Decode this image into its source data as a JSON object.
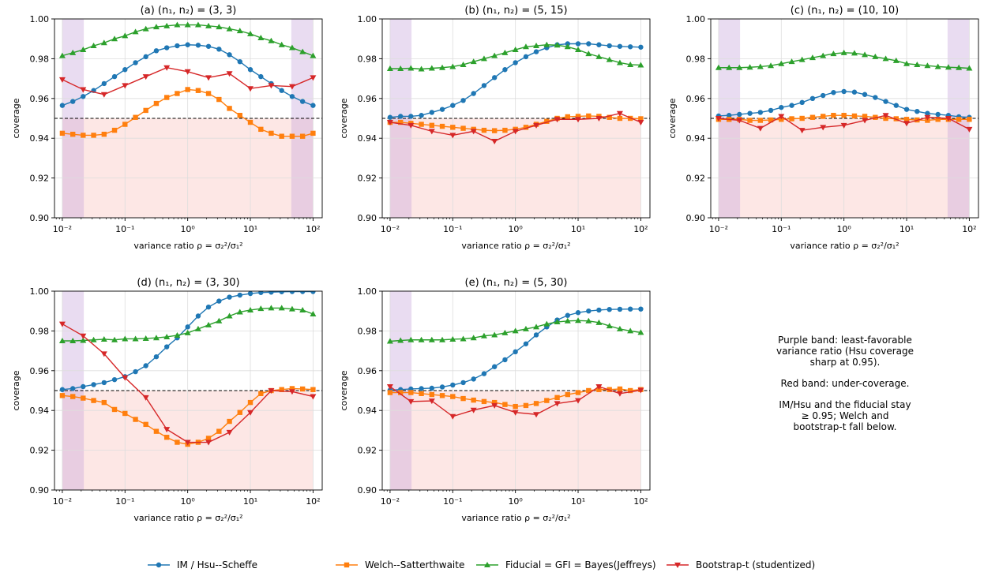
{
  "figure": {
    "ylabel": "coverage",
    "xlabel": "variance ratio ρ = σ₂²/σ₁²",
    "note": [
      "Purple band: least-favorable\nvariance ratio (Hsu coverage\nsharp at 0.95).",
      "Red band: under-coverage.",
      "IM/Hsu and the fiducial stay\n≥ 0.95; Welch and\nbootstrap-t fall below."
    ],
    "legend": [
      {
        "label": "IM / Hsu--Scheffe",
        "color": "#1f77b4",
        "marker": "circle"
      },
      {
        "label": "Welch--Satterthwaite",
        "color": "#ff7f0e",
        "marker": "square"
      },
      {
        "label": "Fiducial = GFI = Bayes(Jeffreys)",
        "color": "#2ca02c",
        "marker": "triangle-up"
      },
      {
        "label": "Bootstrap-t (studentized)",
        "color": "#d62728",
        "marker": "triangle-down"
      }
    ],
    "colors": {
      "purple_band": "#c8a8dc",
      "red_band": "#fde3e0",
      "reference_line": "#000000"
    }
  },
  "chart_data": [
    {
      "type": "line",
      "title": "(a) (n₁, n₂) = (3, 3)",
      "xscale": "log",
      "xlim": [
        0.0075,
        140
      ],
      "ylim": [
        0.9,
        1.0
      ],
      "xticks": [
        "10⁻²",
        "10⁻¹",
        "10⁰",
        "10¹",
        "10²"
      ],
      "yticks": [
        "0.90",
        "0.92",
        "0.94",
        "0.96",
        "0.98",
        "1.00"
      ],
      "reference_line": 0.95,
      "purple_bands": [
        [
          0.01,
          0.022
        ],
        [
          45,
          100
        ]
      ],
      "x": [
        0.01,
        0.0147,
        0.0215,
        0.0316,
        0.0464,
        0.0681,
        0.1,
        0.147,
        0.215,
        0.316,
        0.464,
        0.681,
        1,
        1.47,
        2.15,
        3.16,
        4.64,
        6.81,
        10,
        14.7,
        21.5,
        31.6,
        46.4,
        68.1,
        100
      ],
      "series": [
        {
          "name": "IM / Hsu--Scheffe",
          "values": [
            0.9565,
            0.9585,
            0.961,
            0.964,
            0.9675,
            0.971,
            0.9745,
            0.978,
            0.981,
            0.984,
            0.9855,
            0.9865,
            0.987,
            0.9868,
            0.9862,
            0.9848,
            0.982,
            0.9785,
            0.9745,
            0.971,
            0.9675,
            0.964,
            0.961,
            0.9585,
            0.9565
          ]
        },
        {
          "name": "Welch--Satterthwaite",
          "values": [
            0.9425,
            0.942,
            0.9415,
            0.9415,
            0.942,
            0.944,
            0.947,
            0.9505,
            0.954,
            0.9575,
            0.9605,
            0.9625,
            0.9645,
            0.964,
            0.9625,
            0.9595,
            0.955,
            0.9515,
            0.948,
            0.9445,
            0.9425,
            0.941,
            0.941,
            0.941,
            0.9425
          ]
        },
        {
          "name": "Fiducial = GFI = Bayes(Jeffreys)",
          "values": [
            0.9815,
            0.983,
            0.9845,
            0.9865,
            0.988,
            0.99,
            0.9915,
            0.9935,
            0.995,
            0.996,
            0.9965,
            0.997,
            0.997,
            0.997,
            0.9965,
            0.996,
            0.995,
            0.994,
            0.9925,
            0.9905,
            0.989,
            0.987,
            0.9855,
            0.9835,
            0.9815
          ]
        },
        {
          "name": "Bootstrap-t (studentized)",
          "x": [
            0.01,
            0.0215,
            0.0464,
            0.1,
            0.215,
            0.464,
            1,
            2.15,
            4.64,
            10,
            21.5,
            46.4,
            100
          ],
          "values": [
            0.9695,
            0.9645,
            0.962,
            0.9665,
            0.971,
            0.9755,
            0.9735,
            0.9705,
            0.9725,
            0.965,
            0.9665,
            0.966,
            0.9705
          ]
        }
      ]
    },
    {
      "type": "line",
      "title": "(b) (n₁, n₂) = (5, 15)",
      "xscale": "log",
      "xlim": [
        0.0075,
        140
      ],
      "ylim": [
        0.9,
        1.0
      ],
      "xticks": [
        "10⁻²",
        "10⁻¹",
        "10⁰",
        "10¹",
        "10²"
      ],
      "yticks": [
        "0.90",
        "0.92",
        "0.94",
        "0.96",
        "0.98",
        "1.00"
      ],
      "reference_line": 0.95,
      "purple_bands": [
        [
          0.01,
          0.022
        ]
      ],
      "x": [
        0.01,
        0.0147,
        0.0215,
        0.0316,
        0.0464,
        0.0681,
        0.1,
        0.147,
        0.215,
        0.316,
        0.464,
        0.681,
        1,
        1.47,
        2.15,
        3.16,
        4.64,
        6.81,
        10,
        14.7,
        21.5,
        31.6,
        46.4,
        68.1,
        100
      ],
      "series": [
        {
          "name": "IM / Hsu--Scheffe",
          "values": [
            0.9505,
            0.951,
            0.951,
            0.9515,
            0.953,
            0.9545,
            0.9565,
            0.959,
            0.9625,
            0.9665,
            0.9705,
            0.9745,
            0.978,
            0.981,
            0.9835,
            0.9855,
            0.987,
            0.9875,
            0.9875,
            0.9875,
            0.987,
            0.9865,
            0.9862,
            0.986,
            0.9858
          ]
        },
        {
          "name": "Welch--Satterthwaite",
          "values": [
            0.948,
            0.948,
            0.9475,
            0.947,
            0.9465,
            0.946,
            0.9455,
            0.945,
            0.9445,
            0.944,
            0.9438,
            0.944,
            0.9445,
            0.9455,
            0.947,
            0.9485,
            0.95,
            0.9508,
            0.951,
            0.9512,
            0.951,
            0.9505,
            0.95,
            0.95,
            0.9498
          ]
        },
        {
          "name": "Fiducial = GFI = Bayes(Jeffreys)",
          "values": [
            0.975,
            0.975,
            0.9752,
            0.9748,
            0.9752,
            0.9755,
            0.976,
            0.977,
            0.9785,
            0.98,
            0.9815,
            0.983,
            0.9845,
            0.986,
            0.9865,
            0.987,
            0.9868,
            0.986,
            0.9845,
            0.9825,
            0.981,
            0.9795,
            0.978,
            0.977,
            0.9768
          ]
        },
        {
          "name": "Bootstrap-t (studentized)",
          "x": [
            0.01,
            0.0215,
            0.0464,
            0.1,
            0.215,
            0.464,
            1,
            2.15,
            4.64,
            10,
            21.5,
            46.4,
            100
          ],
          "values": [
            0.948,
            0.9465,
            0.9435,
            0.9415,
            0.9435,
            0.9385,
            0.9435,
            0.9465,
            0.9495,
            0.9495,
            0.95,
            0.9525,
            0.948
          ]
        }
      ]
    },
    {
      "type": "line",
      "title": "(c) (n₁, n₂) = (10, 10)",
      "xscale": "log",
      "xlim": [
        0.0075,
        140
      ],
      "ylim": [
        0.9,
        1.0
      ],
      "xticks": [
        "10⁻²",
        "10⁻¹",
        "10⁰",
        "10¹",
        "10²"
      ],
      "yticks": [
        "0.90",
        "0.92",
        "0.94",
        "0.96",
        "0.98",
        "1.00"
      ],
      "reference_line": 0.95,
      "purple_bands": [
        [
          0.01,
          0.022
        ],
        [
          45,
          100
        ]
      ],
      "x": [
        0.01,
        0.0147,
        0.0215,
        0.0316,
        0.0464,
        0.0681,
        0.1,
        0.147,
        0.215,
        0.316,
        0.464,
        0.681,
        1,
        1.47,
        2.15,
        3.16,
        4.64,
        6.81,
        10,
        14.7,
        21.5,
        31.6,
        46.4,
        68.1,
        100
      ],
      "series": [
        {
          "name": "IM / Hsu--Scheffe",
          "values": [
            0.9512,
            0.9515,
            0.952,
            0.9525,
            0.953,
            0.954,
            0.9555,
            0.9565,
            0.958,
            0.96,
            0.9615,
            0.963,
            0.9635,
            0.9632,
            0.962,
            0.9605,
            0.9585,
            0.9565,
            0.9545,
            0.9535,
            0.9525,
            0.952,
            0.9515,
            0.9508,
            0.9505
          ]
        },
        {
          "name": "Welch--Satterthwaite",
          "values": [
            0.9495,
            0.9495,
            0.9495,
            0.949,
            0.949,
            0.9492,
            0.9495,
            0.9498,
            0.95,
            0.9505,
            0.951,
            0.9515,
            0.9515,
            0.9512,
            0.951,
            0.9505,
            0.95,
            0.9498,
            0.9495,
            0.9492,
            0.949,
            0.9495,
            0.9495,
            0.9495,
            0.9495
          ]
        },
        {
          "name": "Fiducial = GFI = Bayes(Jeffreys)",
          "values": [
            0.9755,
            0.9755,
            0.9755,
            0.9757,
            0.976,
            0.9765,
            0.9775,
            0.9785,
            0.9795,
            0.9805,
            0.9815,
            0.9825,
            0.983,
            0.9828,
            0.982,
            0.981,
            0.98,
            0.979,
            0.9775,
            0.977,
            0.9765,
            0.976,
            0.9757,
            0.9755,
            0.9752
          ]
        },
        {
          "name": "Bootstrap-t (studentized)",
          "x": [
            0.01,
            0.0215,
            0.0464,
            0.1,
            0.215,
            0.464,
            1,
            2.15,
            4.64,
            10,
            21.5,
            46.4,
            100
          ],
          "values": [
            0.95,
            0.949,
            0.945,
            0.951,
            0.944,
            0.9455,
            0.9465,
            0.949,
            0.9515,
            0.9475,
            0.9505,
            0.95,
            0.9445
          ]
        }
      ]
    },
    {
      "type": "line",
      "title": "(d) (n₁, n₂) = (3, 30)",
      "xscale": "log",
      "xlim": [
        0.0075,
        140
      ],
      "ylim": [
        0.9,
        1.0
      ],
      "xticks": [
        "10⁻²",
        "10⁻¹",
        "10⁰",
        "10¹",
        "10²"
      ],
      "yticks": [
        "0.90",
        "0.92",
        "0.94",
        "0.96",
        "0.98",
        "1.00"
      ],
      "reference_line": 0.95,
      "purple_bands": [
        [
          0.01,
          0.022
        ]
      ],
      "x": [
        0.01,
        0.0147,
        0.0215,
        0.0316,
        0.0464,
        0.0681,
        0.1,
        0.147,
        0.215,
        0.316,
        0.464,
        0.681,
        1,
        1.47,
        2.15,
        3.16,
        4.64,
        6.81,
        10,
        14.7,
        21.5,
        31.6,
        46.4,
        68.1,
        100
      ],
      "series": [
        {
          "name": "IM / Hsu--Scheffe",
          "values": [
            0.9505,
            0.951,
            0.952,
            0.953,
            0.954,
            0.9555,
            0.957,
            0.9595,
            0.9625,
            0.967,
            0.972,
            0.9765,
            0.982,
            0.9875,
            0.992,
            0.995,
            0.997,
            0.998,
            0.9988,
            0.9993,
            0.9995,
            0.9997,
            0.9998,
            0.9998,
            0.9998
          ]
        },
        {
          "name": "Welch--Satterthwaite",
          "values": [
            0.9475,
            0.947,
            0.9462,
            0.945,
            0.944,
            0.9405,
            0.9385,
            0.9355,
            0.933,
            0.9295,
            0.9265,
            0.924,
            0.923,
            0.924,
            0.926,
            0.9295,
            0.9345,
            0.939,
            0.944,
            0.9485,
            0.95,
            0.9505,
            0.951,
            0.9508,
            0.9505
          ]
        },
        {
          "name": "Fiducial = GFI = Bayes(Jeffreys)",
          "values": [
            0.975,
            0.975,
            0.9752,
            0.9755,
            0.9758,
            0.9755,
            0.976,
            0.976,
            0.9762,
            0.9765,
            0.977,
            0.9778,
            0.979,
            0.981,
            0.983,
            0.985,
            0.9875,
            0.9895,
            0.9905,
            0.9912,
            0.9915,
            0.9915,
            0.991,
            0.9905,
            0.9885
          ]
        },
        {
          "name": "Bootstrap-t (studentized)",
          "x": [
            0.01,
            0.0215,
            0.0464,
            0.1,
            0.215,
            0.464,
            1,
            2.15,
            4.64,
            10,
            21.5,
            46.4,
            100
          ],
          "values": [
            0.9835,
            0.9775,
            0.9685,
            0.9565,
            0.9465,
            0.9305,
            0.924,
            0.924,
            0.929,
            0.939,
            0.95,
            0.9495,
            0.947
          ]
        }
      ]
    },
    {
      "type": "line",
      "title": "(e) (n₁, n₂) = (5, 30)",
      "xscale": "log",
      "xlim": [
        0.0075,
        140
      ],
      "ylim": [
        0.9,
        1.0
      ],
      "xticks": [
        "10⁻²",
        "10⁻¹",
        "10⁰",
        "10¹",
        "10²"
      ],
      "yticks": [
        "0.90",
        "0.92",
        "0.94",
        "0.96",
        "0.98",
        "1.00"
      ],
      "reference_line": 0.95,
      "purple_bands": [
        [
          0.01,
          0.022
        ]
      ],
      "x": [
        0.01,
        0.0147,
        0.0215,
        0.0316,
        0.0464,
        0.0681,
        0.1,
        0.147,
        0.215,
        0.316,
        0.464,
        0.681,
        1,
        1.47,
        2.15,
        3.16,
        4.64,
        6.81,
        10,
        14.7,
        21.5,
        31.6,
        46.4,
        68.1,
        100
      ],
      "series": [
        {
          "name": "IM / Hsu--Scheffe",
          "values": [
            0.9502,
            0.9505,
            0.9508,
            0.951,
            0.9512,
            0.9518,
            0.9528,
            0.954,
            0.9558,
            0.9585,
            0.962,
            0.9655,
            0.9695,
            0.9735,
            0.978,
            0.982,
            0.9855,
            0.9878,
            0.9892,
            0.99,
            0.9905,
            0.9908,
            0.9909,
            0.991,
            0.991
          ]
        },
        {
          "name": "Welch--Satterthwaite",
          "values": [
            0.949,
            0.949,
            0.949,
            0.9485,
            0.948,
            0.9475,
            0.947,
            0.946,
            0.9452,
            0.9445,
            0.944,
            0.943,
            0.942,
            0.9425,
            0.9435,
            0.945,
            0.9465,
            0.948,
            0.949,
            0.95,
            0.9505,
            0.9505,
            0.9508,
            0.95,
            0.9505
          ]
        },
        {
          "name": "Fiducial = GFI = Bayes(Jeffreys)",
          "values": [
            0.9748,
            0.9752,
            0.9755,
            0.9755,
            0.9755,
            0.9755,
            0.9758,
            0.976,
            0.9765,
            0.9775,
            0.978,
            0.979,
            0.98,
            0.981,
            0.982,
            0.9835,
            0.9845,
            0.985,
            0.9852,
            0.985,
            0.9842,
            0.9825,
            0.981,
            0.98,
            0.9792
          ]
        },
        {
          "name": "Bootstrap-t (studentized)",
          "x": [
            0.01,
            0.0215,
            0.0464,
            0.1,
            0.215,
            0.464,
            1,
            2.15,
            4.64,
            10,
            21.5,
            46.4,
            100
          ],
          "values": [
            0.952,
            0.9445,
            0.9448,
            0.937,
            0.9402,
            0.9425,
            0.939,
            0.938,
            0.9435,
            0.945,
            0.952,
            0.9485,
            0.9502
          ]
        }
      ]
    }
  ]
}
